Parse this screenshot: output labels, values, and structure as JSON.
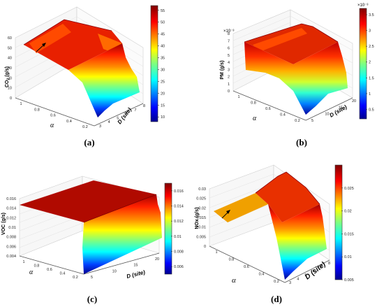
{
  "figure": {
    "panel_labels": [
      "(a)",
      "(b)",
      "(c)",
      "(d)"
    ]
  },
  "chart_data": [
    {
      "panel": "(a)",
      "type": "surface",
      "zlabel": "CO_2 (g/s)",
      "ylabel": "α",
      "xlabel": "D (site)",
      "z_ticks": [
        "0",
        "10",
        "20",
        "30",
        "40",
        "50",
        "60"
      ],
      "alpha_ticks": [
        "1",
        "0.8",
        "0.6",
        "0.4",
        "0.2"
      ],
      "d_ticks": [
        "3",
        "4",
        "5",
        "6",
        "7",
        "8"
      ],
      "colorbar_ticks": [
        "55",
        "50",
        "45",
        "40",
        "35",
        "30",
        "25",
        "20",
        "15",
        "10"
      ],
      "colorbar_range": [
        8,
        57
      ],
      "zlim": [
        0,
        60
      ],
      "annotation": "arrow"
    },
    {
      "panel": "(b)",
      "type": "surface",
      "zlabel": "PM (g/s)",
      "ylabel": "α",
      "xlabel": "D (site)",
      "z_exponent": "×10⁻³",
      "z_ticks": [
        "0",
        "1",
        "2",
        "3",
        "4",
        "5",
        "6",
        "7",
        "8"
      ],
      "alpha_ticks": [
        "1",
        "0.8",
        "0.6",
        "0.4",
        "0.2"
      ],
      "d_ticks": [
        "5",
        "10",
        "15",
        "20"
      ],
      "colorbar_exponent": "×10⁻³",
      "colorbar_ticks": [
        "3.5",
        "3",
        "2.5",
        "2",
        "1.5",
        "1",
        "0.5"
      ],
      "colorbar_range": [
        0.2,
        3.7
      ],
      "zlim": [
        0,
        8
      ]
    },
    {
      "panel": "(c)",
      "type": "surface",
      "zlabel": "VOC (g/s)",
      "ylabel": "α",
      "xlabel": "D (site)",
      "z_ticks": [
        "0.004",
        "0.006",
        "0.008",
        "0.01",
        "0.012",
        "0.014",
        "0.016"
      ],
      "alpha_ticks": [
        "1",
        "0.8",
        "0.6",
        "0.4",
        "0.2"
      ],
      "d_ticks": [
        "5",
        "10",
        "15",
        "20"
      ],
      "colorbar_ticks": [
        "0.016",
        "0.014",
        "0.012",
        "0.01",
        "0.008",
        "0.006"
      ],
      "colorbar_range": [
        0.005,
        0.017
      ],
      "zlim": [
        0.004,
        0.016
      ]
    },
    {
      "panel": "(d)",
      "type": "surface",
      "zlabel": "NOx (g/s)",
      "ylabel": "α",
      "xlabel": "D (site)",
      "z_ticks": [
        "0",
        "0.005",
        "0.01",
        "0.015",
        "0.02",
        "0.025",
        "0.03"
      ],
      "alpha_ticks": [
        "1",
        "0.8",
        "0.6",
        "0.4",
        "0.2"
      ],
      "d_ticks": [
        "3",
        "4",
        "5",
        "6",
        "7",
        "8"
      ],
      "colorbar_ticks": [
        "0.025",
        "0.02",
        "0.015",
        "0.01",
        "0.005"
      ],
      "colorbar_range": [
        0.005,
        0.03
      ],
      "zlim": [
        0,
        0.03
      ],
      "annotation": "arrow"
    }
  ]
}
